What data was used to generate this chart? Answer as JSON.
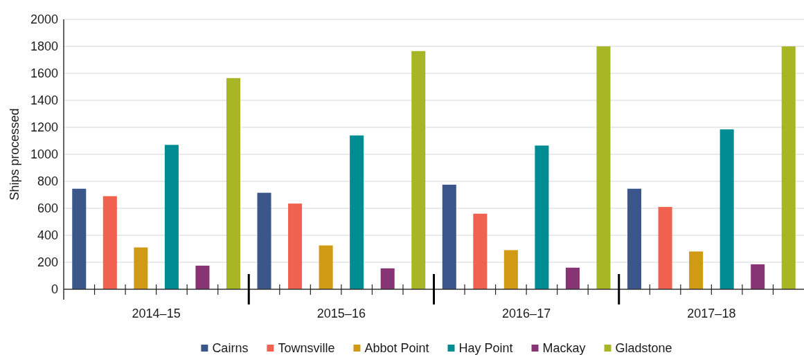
{
  "chart_data": {
    "type": "bar",
    "ylabel": "Ships processed",
    "categories": [
      "2014–15",
      "2015–16",
      "2016–17",
      "2017–18"
    ],
    "series": [
      {
        "name": "Cairns",
        "color": "#3b568a",
        "values": [
          745,
          715,
          775,
          745
        ]
      },
      {
        "name": "Townsville",
        "color": "#f0624f",
        "values": [
          690,
          635,
          560,
          610
        ]
      },
      {
        "name": "Abbot Point",
        "color": "#d19a14",
        "values": [
          310,
          325,
          290,
          280
        ]
      },
      {
        "name": "Hay Point",
        "color": "#008c93",
        "values": [
          1070,
          1140,
          1065,
          1185
        ]
      },
      {
        "name": "Mackay",
        "color": "#873474",
        "values": [
          175,
          155,
          160,
          185
        ]
      },
      {
        "name": "Gladstone",
        "color": "#a8b524",
        "values": [
          1565,
          1765,
          1800,
          1800
        ]
      }
    ],
    "ylim": [
      0,
      2000
    ],
    "yticks": [
      0,
      200,
      400,
      600,
      800,
      1000,
      1200,
      1400,
      1600,
      1800,
      2000
    ],
    "grid": "y",
    "legend": "bottom"
  }
}
